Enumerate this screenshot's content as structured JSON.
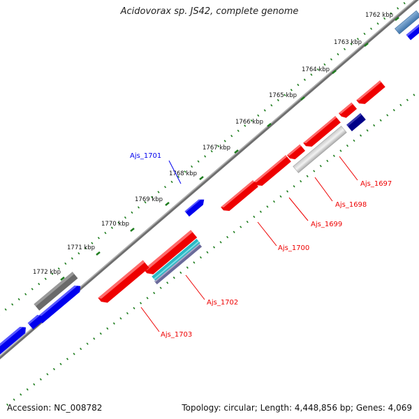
{
  "title": "Acidovorax sp. JS42, complete genome",
  "footer": {
    "accession": "Accession: NC_008782",
    "summary": "Topology: circular; Length: 4,448,856 bp; Genes: 4,069"
  },
  "colors": {
    "forward_gene": "#0000ee",
    "reverse_gene": "#ee0000",
    "backbone": "#888888",
    "tick_mark": "#1e7d1e",
    "highlight_gray": "#777777",
    "light_gray": "#c8c8c8",
    "navy": "#000088",
    "steel_blue": "#4a7fb5",
    "cyan_band": "#2bb8c4"
  },
  "scale_labels": [
    {
      "text": "1762 kbp"
    },
    {
      "text": "1763 kbp"
    },
    {
      "text": "1764 kbp"
    },
    {
      "text": "1765 kbp"
    },
    {
      "text": "1766 kbp"
    },
    {
      "text": "1767 kbp"
    },
    {
      "text": "1768 kbp"
    },
    {
      "text": "1769 kbp"
    },
    {
      "text": "1770 kbp"
    },
    {
      "text": "1771 kbp"
    },
    {
      "text": "1772 kbp"
    }
  ],
  "gene_labels": [
    {
      "text": "Ajs_1701",
      "strand": "forward"
    },
    {
      "text": "Ajs_1697",
      "strand": "reverse"
    },
    {
      "text": "Ajs_1698",
      "strand": "reverse"
    },
    {
      "text": "Ajs_1699",
      "strand": "reverse"
    },
    {
      "text": "Ajs_1700",
      "strand": "reverse"
    },
    {
      "text": "Ajs_1702",
      "strand": "reverse"
    },
    {
      "text": "Ajs_1703",
      "strand": "reverse"
    }
  ]
}
